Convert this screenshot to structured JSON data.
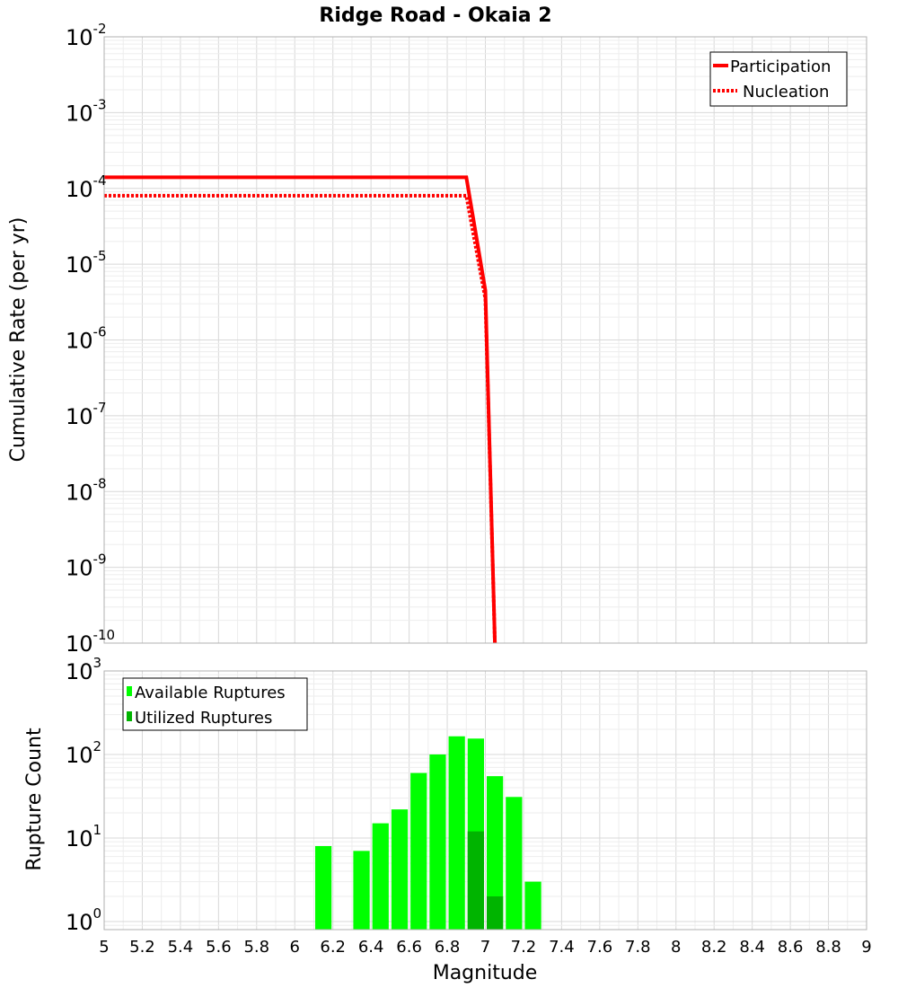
{
  "chart_data": {
    "title": "Ridge Road - Okaia 2",
    "xlabel": "Magnitude",
    "xlim": [
      5,
      9
    ],
    "x_ticks": [
      "5",
      "5.2",
      "5.4",
      "5.6",
      "5.8",
      "6",
      "6.2",
      "6.4",
      "6.6",
      "6.8",
      "7",
      "7.2",
      "7.4",
      "7.6",
      "7.8",
      "8",
      "8.2",
      "8.4",
      "8.6",
      "8.8",
      "9"
    ],
    "panels": [
      {
        "type": "line",
        "ylabel": "Cumulative Rate (per yr)",
        "yscale": "log",
        "ylim_exp": [
          -10,
          -2
        ],
        "y_ticks": [
          {
            "base": "10",
            "exp": "-2"
          },
          {
            "base": "10",
            "exp": "-3"
          },
          {
            "base": "10",
            "exp": "-4"
          },
          {
            "base": "10",
            "exp": "-5"
          },
          {
            "base": "10",
            "exp": "-6"
          },
          {
            "base": "10",
            "exp": "-7"
          },
          {
            "base": "10",
            "exp": "-8"
          },
          {
            "base": "10",
            "exp": "-9"
          },
          {
            "base": "10",
            "exp": "-10"
          }
        ],
        "legend_position": "top-right",
        "series": [
          {
            "name": "Participation",
            "style": "solid",
            "color": "#ff0000",
            "x": [
              5.0,
              6.9,
              7.0,
              7.05
            ],
            "y": [
              0.00014,
              0.00014,
              4.5e-06,
              1e-10
            ]
          },
          {
            "name": "Nucleation",
            "style": "dotted",
            "color": "#ff0000",
            "x": [
              5.0,
              6.9,
              7.0,
              7.05
            ],
            "y": [
              8e-05,
              8e-05,
              3.5e-06,
              1e-10
            ]
          }
        ]
      },
      {
        "type": "bar",
        "ylabel": "Rupture Count",
        "yscale": "log",
        "ylim": [
          0.8,
          1000
        ],
        "y_ticks": [
          {
            "base": "10",
            "exp": "3"
          },
          {
            "base": "10",
            "exp": "2"
          },
          {
            "base": "10",
            "exp": "1"
          },
          {
            "base": "10",
            "exp": "0"
          }
        ],
        "legend_position": "top-left",
        "bin_width": 0.1,
        "series": [
          {
            "name": "Available Ruptures",
            "color": "#00ff00",
            "x": [
              6.15,
              6.35,
              6.45,
              6.55,
              6.65,
              6.75,
              6.85,
              6.95,
              7.05,
              7.15,
              7.25
            ],
            "values": [
              8,
              7,
              15,
              22,
              60,
              100,
              165,
              155,
              55,
              31,
              3
            ]
          },
          {
            "name": "Utilized Ruptures",
            "color": "#00b400",
            "x": [
              6.95,
              7.05
            ],
            "values": [
              12,
              2
            ]
          }
        ]
      }
    ]
  }
}
